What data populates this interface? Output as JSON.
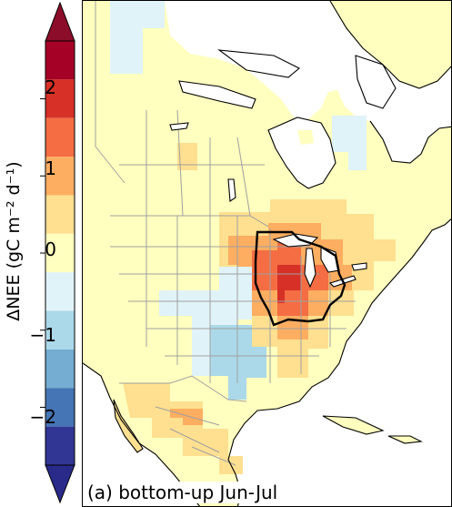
{
  "panel_title": "(a) bottom-up Jun-Jul",
  "colorbar": {
    "label": "ΔNEE (gC m⁻² d⁻¹)",
    "ticks": [
      "2",
      "1",
      "0",
      "−1",
      "−2"
    ],
    "tick_values": [
      2,
      1,
      0,
      -1,
      -2
    ],
    "range": [
      -2.75,
      2.75
    ],
    "bins": [
      {
        "lo": 2.25,
        "hi": 2.75,
        "color": "#a50026"
      },
      {
        "lo": 1.75,
        "hi": 2.25,
        "color": "#d73027"
      },
      {
        "lo": 1.25,
        "hi": 1.75,
        "color": "#f46d43"
      },
      {
        "lo": 0.75,
        "hi": 1.25,
        "color": "#fdae61"
      },
      {
        "lo": 0.25,
        "hi": 0.75,
        "color": "#fee090"
      },
      {
        "lo": -0.25,
        "hi": 0.25,
        "color": "#ffffbf"
      },
      {
        "lo": -0.75,
        "hi": -0.25,
        "color": "#e0f3f8"
      },
      {
        "lo": -1.25,
        "hi": -0.75,
        "color": "#abd9e9"
      },
      {
        "lo": -1.75,
        "hi": -1.25,
        "color": "#74add1"
      },
      {
        "lo": -2.25,
        "hi": -1.75,
        "color": "#4575b4"
      },
      {
        "lo": -2.75,
        "hi": -2.25,
        "color": "#313695"
      }
    ],
    "extend_max_color": "#8b0d2a",
    "extend_min_color": "#2a2a8a"
  },
  "colors": {
    "neutral": "#ffffbf",
    "positive_light": "#fee090",
    "positive_medium": "#fdae61",
    "positive_strong": "#f46d43",
    "positive_max": "#d73027",
    "negative_light": "#e0f3f8",
    "negative_medium": "#abd9e9",
    "ocean": "#ffffff",
    "boundary": "#a0a0a0",
    "coastline": "#000000",
    "highlight_region_outline": "#000000"
  }
}
